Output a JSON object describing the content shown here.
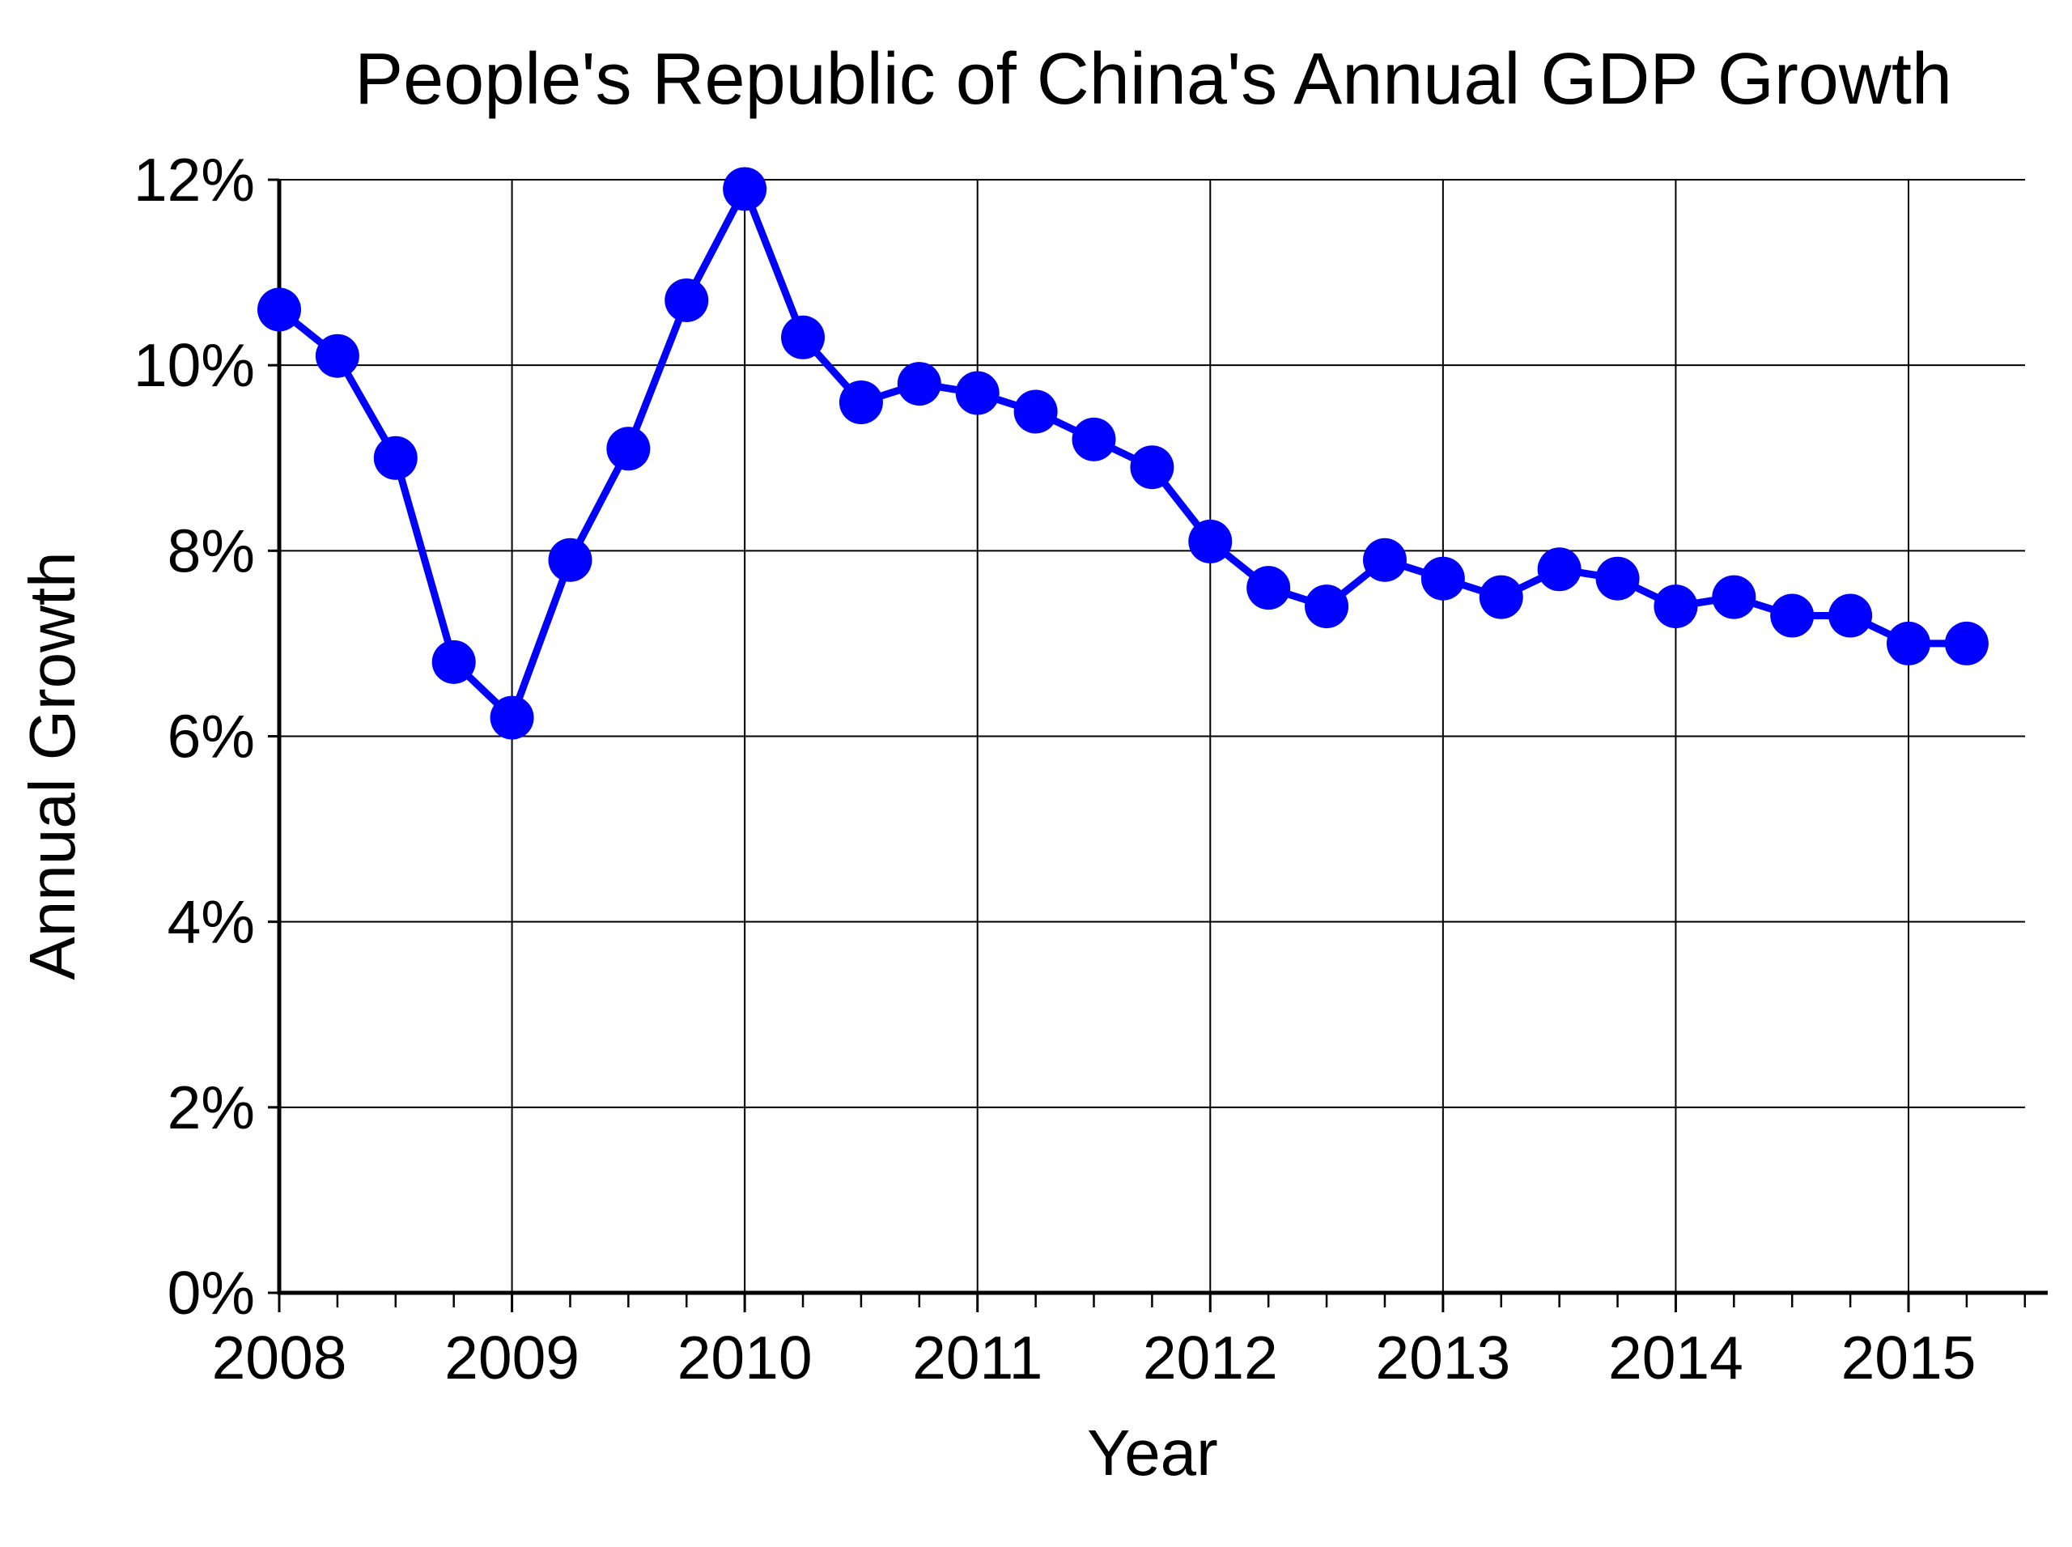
{
  "colors": {
    "series": "#0000ff",
    "axis": "#000000",
    "grid": "#000000",
    "background": "#ffffff"
  },
  "chart_data": {
    "type": "line",
    "title": "People's Republic of China's Annual GDP Growth",
    "xlabel": "Year",
    "ylabel": "Annual Growth",
    "x_ticks": [
      "2008",
      "2009",
      "2010",
      "2011",
      "2012",
      "2013",
      "2014",
      "2015"
    ],
    "y_ticks": [
      "0%",
      "2%",
      "4%",
      "6%",
      "8%",
      "10%",
      "12%"
    ],
    "xlim": [
      2008,
      2015.5
    ],
    "ylim": [
      0,
      12
    ],
    "grid": true,
    "legend": "none",
    "marker": "circle",
    "series": [
      {
        "x": [
          2008.0,
          2008.25,
          2008.5,
          2008.75,
          2009.0,
          2009.25,
          2009.5,
          2009.75,
          2010.0,
          2010.25,
          2010.5,
          2010.75,
          2011.0,
          2011.25,
          2011.5,
          2011.75,
          2012.0,
          2012.25,
          2012.5,
          2012.75,
          2013.0,
          2013.25,
          2013.5,
          2013.75,
          2014.0,
          2014.25,
          2014.5,
          2014.75,
          2015.0,
          2015.25
        ],
        "values": [
          10.6,
          10.1,
          9.0,
          6.8,
          6.2,
          7.9,
          9.1,
          10.7,
          11.9,
          10.3,
          9.6,
          9.8,
          9.7,
          9.5,
          9.2,
          8.9,
          8.1,
          7.6,
          7.4,
          7.9,
          7.7,
          7.5,
          7.8,
          7.7,
          7.4,
          7.5,
          7.3,
          7.3,
          7.0,
          7.0
        ]
      }
    ]
  }
}
